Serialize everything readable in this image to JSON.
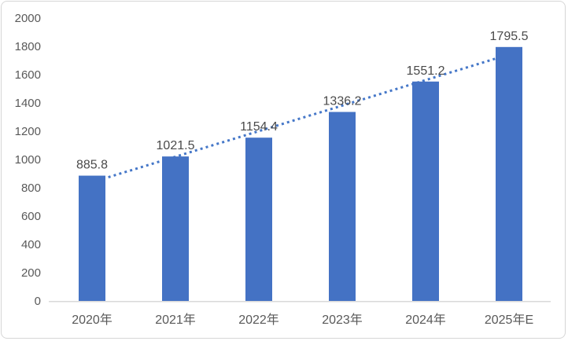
{
  "chart_data": {
    "type": "bar",
    "title": "",
    "xlabel": "",
    "ylabel": "",
    "categories": [
      "2020年",
      "2021年",
      "2022年",
      "2023年",
      "2024年",
      "2025年E"
    ],
    "values": [
      885.8,
      1021.5,
      1154.4,
      1336.2,
      1551.2,
      1795.5
    ],
    "data_labels": [
      "885.8",
      "1021.5",
      "1154.4",
      "1336.2",
      "1551.2",
      "1795.5"
    ],
    "ylim": [
      0,
      2000
    ],
    "ytick_step": 200,
    "ytick_labels": [
      "0",
      "200",
      "400",
      "600",
      "800",
      "1000",
      "1200",
      "1400",
      "1600",
      "1800",
      "2000"
    ],
    "grid": false,
    "legend": "none",
    "trendline": {
      "type": "linear",
      "style": "dotted",
      "color": "#4577c8"
    },
    "colors": {
      "bar": "#4472c4",
      "axis_line": "#d9d9d9",
      "tick_label": "#595959",
      "category_label": "#595959",
      "data_label": "#4a4a4a",
      "card_border": "#d6d6d6",
      "background": "#ffffff"
    }
  }
}
